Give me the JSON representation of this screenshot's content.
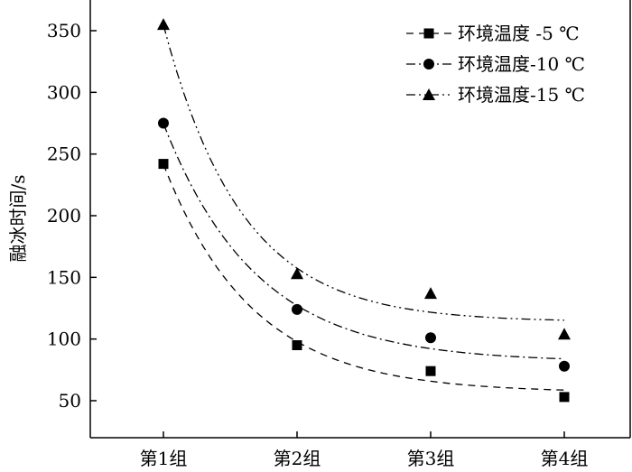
{
  "chart_data": {
    "type": "scatter",
    "title": "",
    "xlabel": "",
    "ylabel": "融冰时间/s",
    "categories": [
      "第1组",
      "第2组",
      "第3组",
      "第4组"
    ],
    "yticks": [
      "50",
      "100",
      "150",
      "200",
      "250",
      "300",
      "350"
    ],
    "ylim": [
      20,
      370
    ],
    "grid": false,
    "legend_position": "top-right",
    "series": [
      {
        "name": "环境温度 -5 ℃",
        "marker": "square",
        "line_style": "dashed",
        "values": [
          242,
          95,
          74,
          53
        ]
      },
      {
        "name": "环境温度-10 ℃",
        "marker": "circle",
        "line_style": "dash-dot",
        "values": [
          275,
          124,
          101,
          78
        ]
      },
      {
        "name": "环境温度-15 ℃",
        "marker": "triangle",
        "line_style": "dash-dot-dot",
        "values": [
          355,
          153,
          137,
          104
        ]
      }
    ],
    "color": "#000000"
  }
}
